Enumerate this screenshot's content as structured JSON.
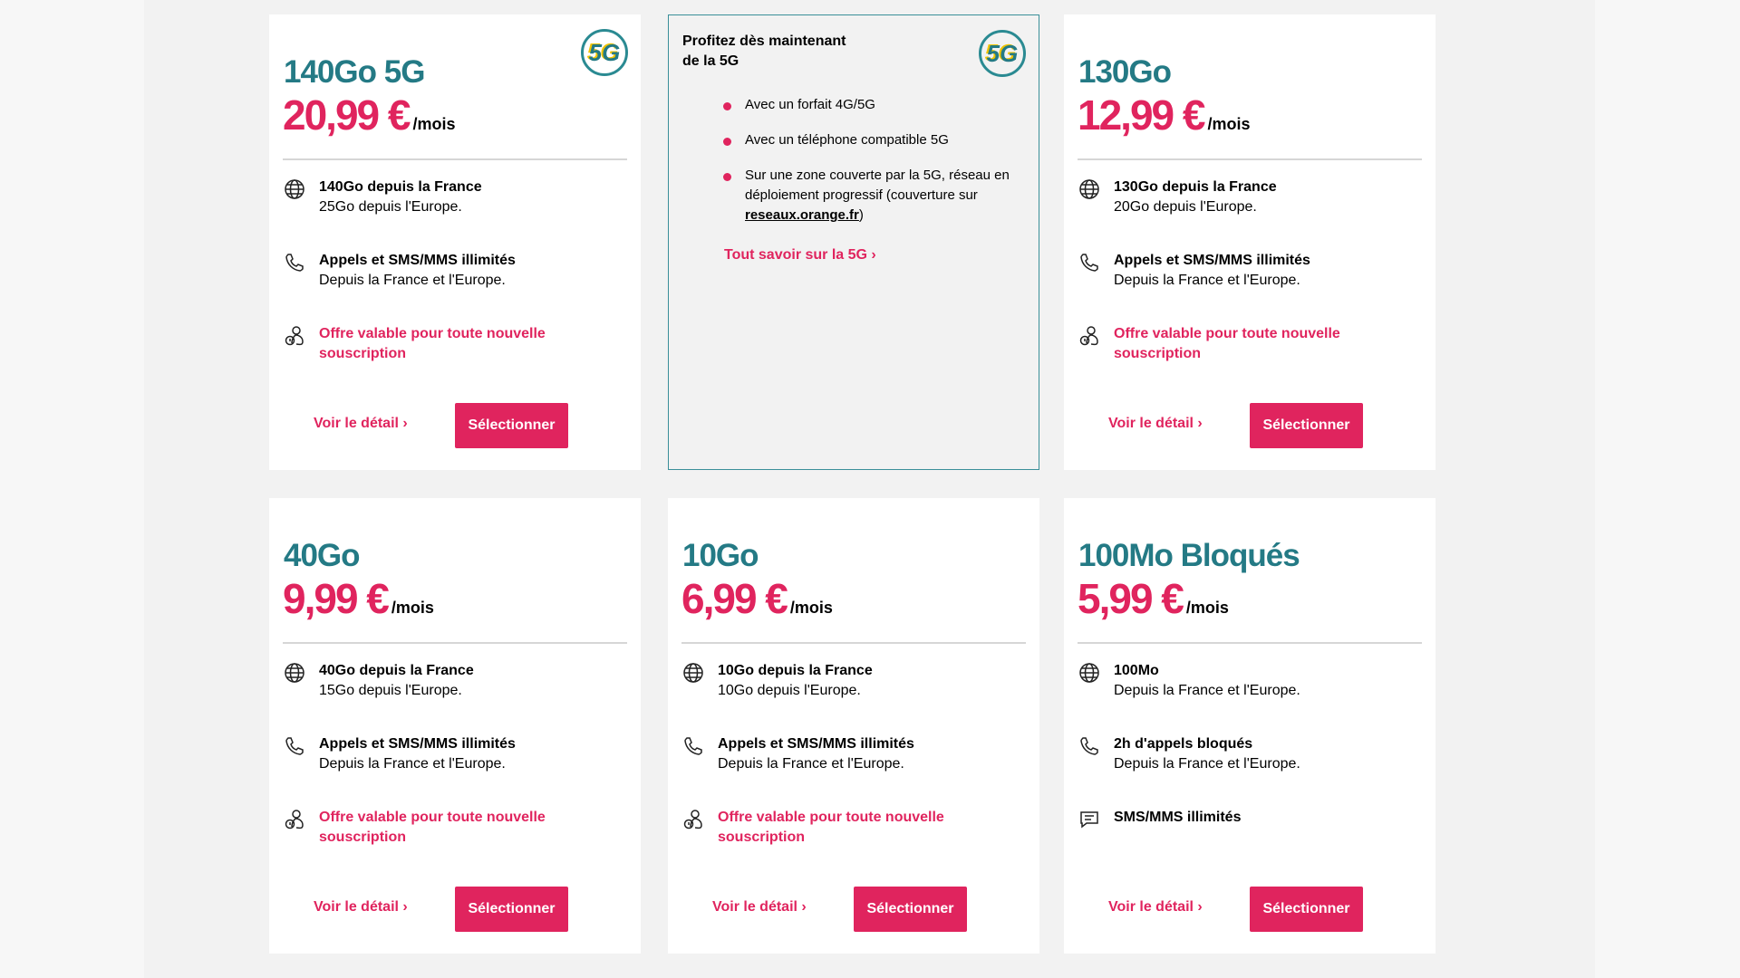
{
  "colors": {
    "accent": "#e0245e",
    "title": "#247a85"
  },
  "promo": {
    "title_line1": "Profitez dès maintenant",
    "title_line2": "de la 5G",
    "badge": "5G",
    "bullets": [
      "Avec un forfait 4G/5G",
      "Avec un téléphone compatible 5G",
      "Sur une zone couverte par la 5G, réseau en déploiement progressif (couverture sur "
    ],
    "link_text": "reseaux.orange.fr",
    "link_close": ")",
    "more": "Tout savoir sur la 5G ›"
  },
  "per_month": "/mois",
  "detail_label": "Voir le détail ›",
  "select_label": "Sélectionner",
  "plans": [
    {
      "title": "140Go 5G",
      "price": "20,99 €",
      "badge": "5G",
      "f1a": "140Go depuis la France",
      "f1b": "25Go depuis l'Europe.",
      "f2a": "Appels et SMS/MMS illimités",
      "f2b": "Depuis la France et l'Europe.",
      "f3": "Offre valable pour toute nouvelle souscription"
    },
    {
      "title": "130Go",
      "price": "12,99 €",
      "f1a": "130Go depuis la France",
      "f1b": "20Go depuis l'Europe.",
      "f2a": "Appels et SMS/MMS illimités",
      "f2b": "Depuis la France et l'Europe.",
      "f3": "Offre valable pour toute nouvelle souscription"
    },
    {
      "title": "40Go",
      "price": "9,99 €",
      "f1a": "40Go depuis la France",
      "f1b": "15Go depuis l'Europe.",
      "f2a": "Appels et SMS/MMS illimités",
      "f2b": "Depuis la France et l'Europe.",
      "f3": "Offre valable pour toute nouvelle souscription"
    },
    {
      "title": "10Go",
      "price": "6,99 €",
      "f1a": "10Go depuis la France",
      "f1b": "10Go depuis l'Europe.",
      "f2a": "Appels et SMS/MMS illimités",
      "f2b": "Depuis la France et l'Europe.",
      "f3": "Offre valable pour toute nouvelle souscription"
    },
    {
      "title": "100Mo Bloqués",
      "price": "5,99 €",
      "f1a": "100Mo",
      "f1b": "Depuis la France et l'Europe.",
      "f2a": "2h d'appels bloqués",
      "f2b": "Depuis la France et l'Europe.",
      "f3": "SMS/MMS illimités"
    }
  ]
}
